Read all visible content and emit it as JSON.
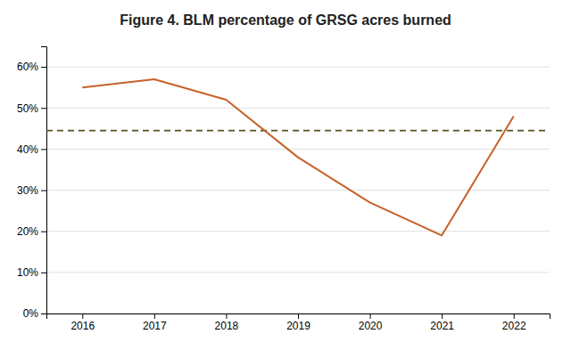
{
  "chart_data": {
    "type": "line",
    "title": "Figure 4. BLM percentage of GRSG acres burned",
    "x": [
      2016,
      2017,
      2018,
      2019,
      2020,
      2021,
      2022
    ],
    "values": [
      0.55,
      0.57,
      0.52,
      0.38,
      0.27,
      0.19,
      0.48
    ],
    "color": "#C8612A",
    "hline": {
      "value": 0.445,
      "color": "#5a5020",
      "line_style": "dashed"
    },
    "xlim": [
      2015.5,
      2022.5
    ],
    "xticks": [
      2016,
      2017,
      2018,
      2019,
      2020,
      2021,
      2022
    ],
    "ylim": [
      0,
      0.65
    ],
    "yticks": [
      {
        "value": 0.0,
        "label": "0%"
      },
      {
        "value": 0.1,
        "label": "10%"
      },
      {
        "value": 0.2,
        "label": "20%"
      },
      {
        "value": 0.3,
        "label": "30%"
      },
      {
        "value": 0.4,
        "label": "40%"
      },
      {
        "value": 0.5,
        "label": "50%"
      },
      {
        "value": 0.6,
        "label": "60%"
      }
    ],
    "grid": true
  }
}
